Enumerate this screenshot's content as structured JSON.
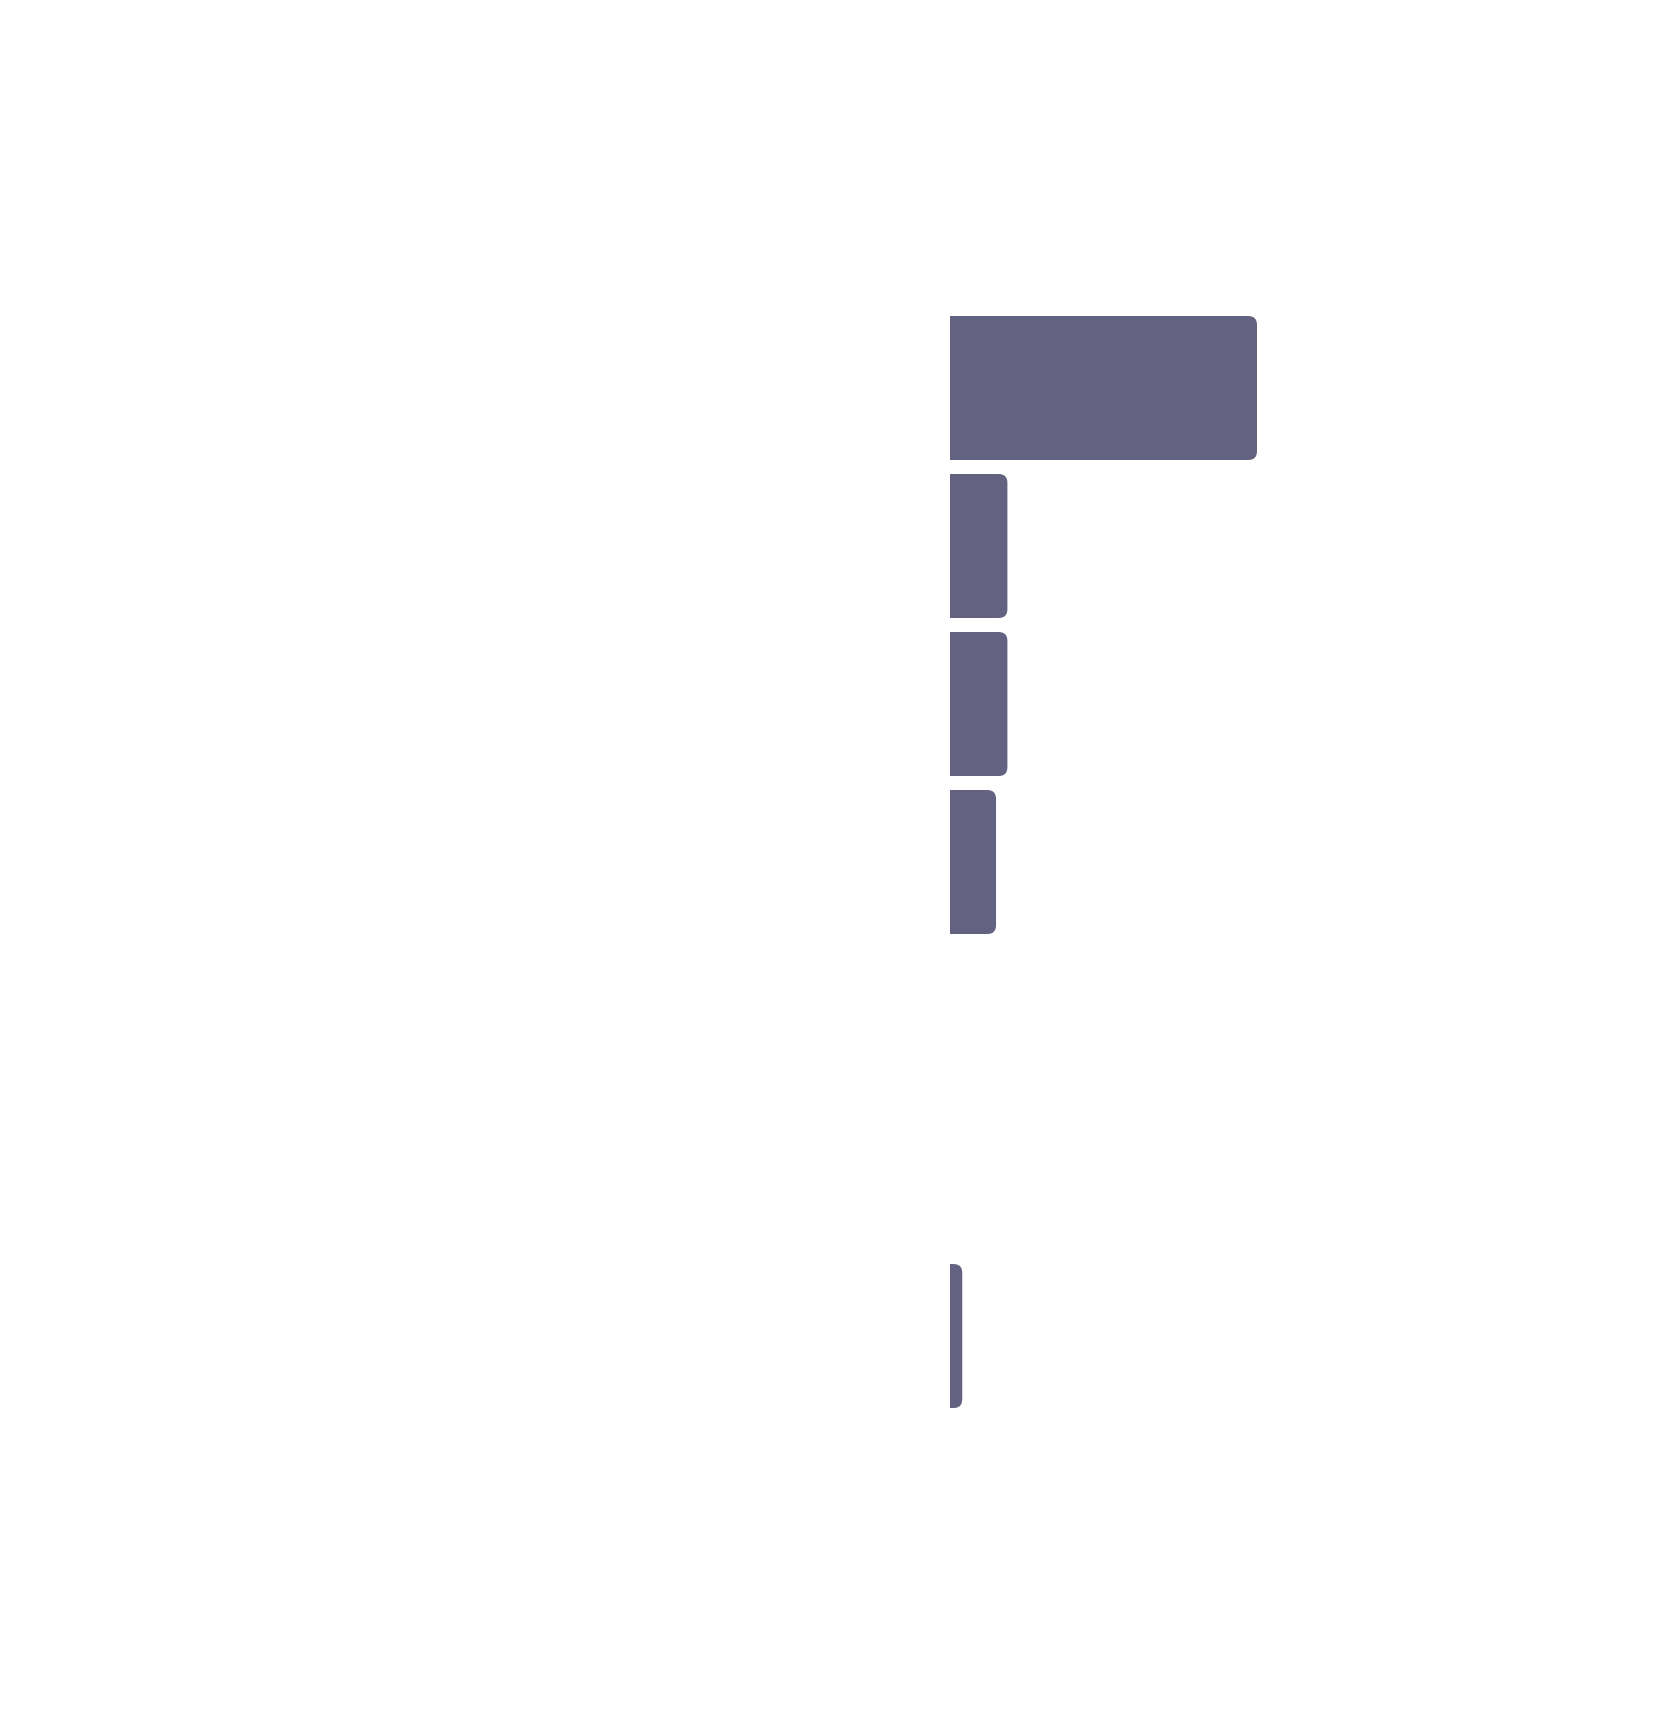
{
  "chart_data": {
    "type": "bar",
    "orientation": "horizontal",
    "categories": [
      "",
      "",
      "",
      "",
      "",
      "",
      ""
    ],
    "values": [
      100,
      18.7,
      18.7,
      15,
      0,
      0,
      4
    ],
    "xlim": [
      0,
      100
    ],
    "grid": false,
    "bar_color": "#636281",
    "background_color": "#ffffff"
  }
}
